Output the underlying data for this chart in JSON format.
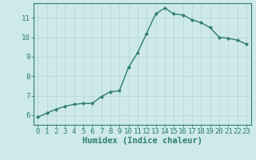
{
  "x": [
    0,
    1,
    2,
    3,
    4,
    5,
    6,
    7,
    8,
    9,
    10,
    11,
    12,
    13,
    14,
    15,
    16,
    17,
    18,
    19,
    20,
    21,
    22,
    23
  ],
  "y": [
    5.9,
    6.1,
    6.3,
    6.45,
    6.55,
    6.6,
    6.6,
    6.95,
    7.2,
    7.25,
    8.45,
    9.2,
    10.2,
    11.2,
    11.5,
    11.2,
    11.15,
    10.9,
    10.75,
    10.5,
    10.0,
    9.95,
    9.85,
    9.65
  ],
  "line_color": "#2e7d6e",
  "marker": "D",
  "marker_size": 2.2,
  "bg_color": "#cde9e9",
  "grid_color": "#b8d8d8",
  "xlabel": "Humidex (Indice chaleur)",
  "ylabel_ticks": [
    6,
    7,
    8,
    9,
    10,
    11
  ],
  "xlim": [
    -0.5,
    23.5
  ],
  "ylim": [
    5.5,
    11.75
  ],
  "tick_fontsize": 6.5,
  "xlabel_fontsize": 7.5,
  "line_width": 1.0
}
